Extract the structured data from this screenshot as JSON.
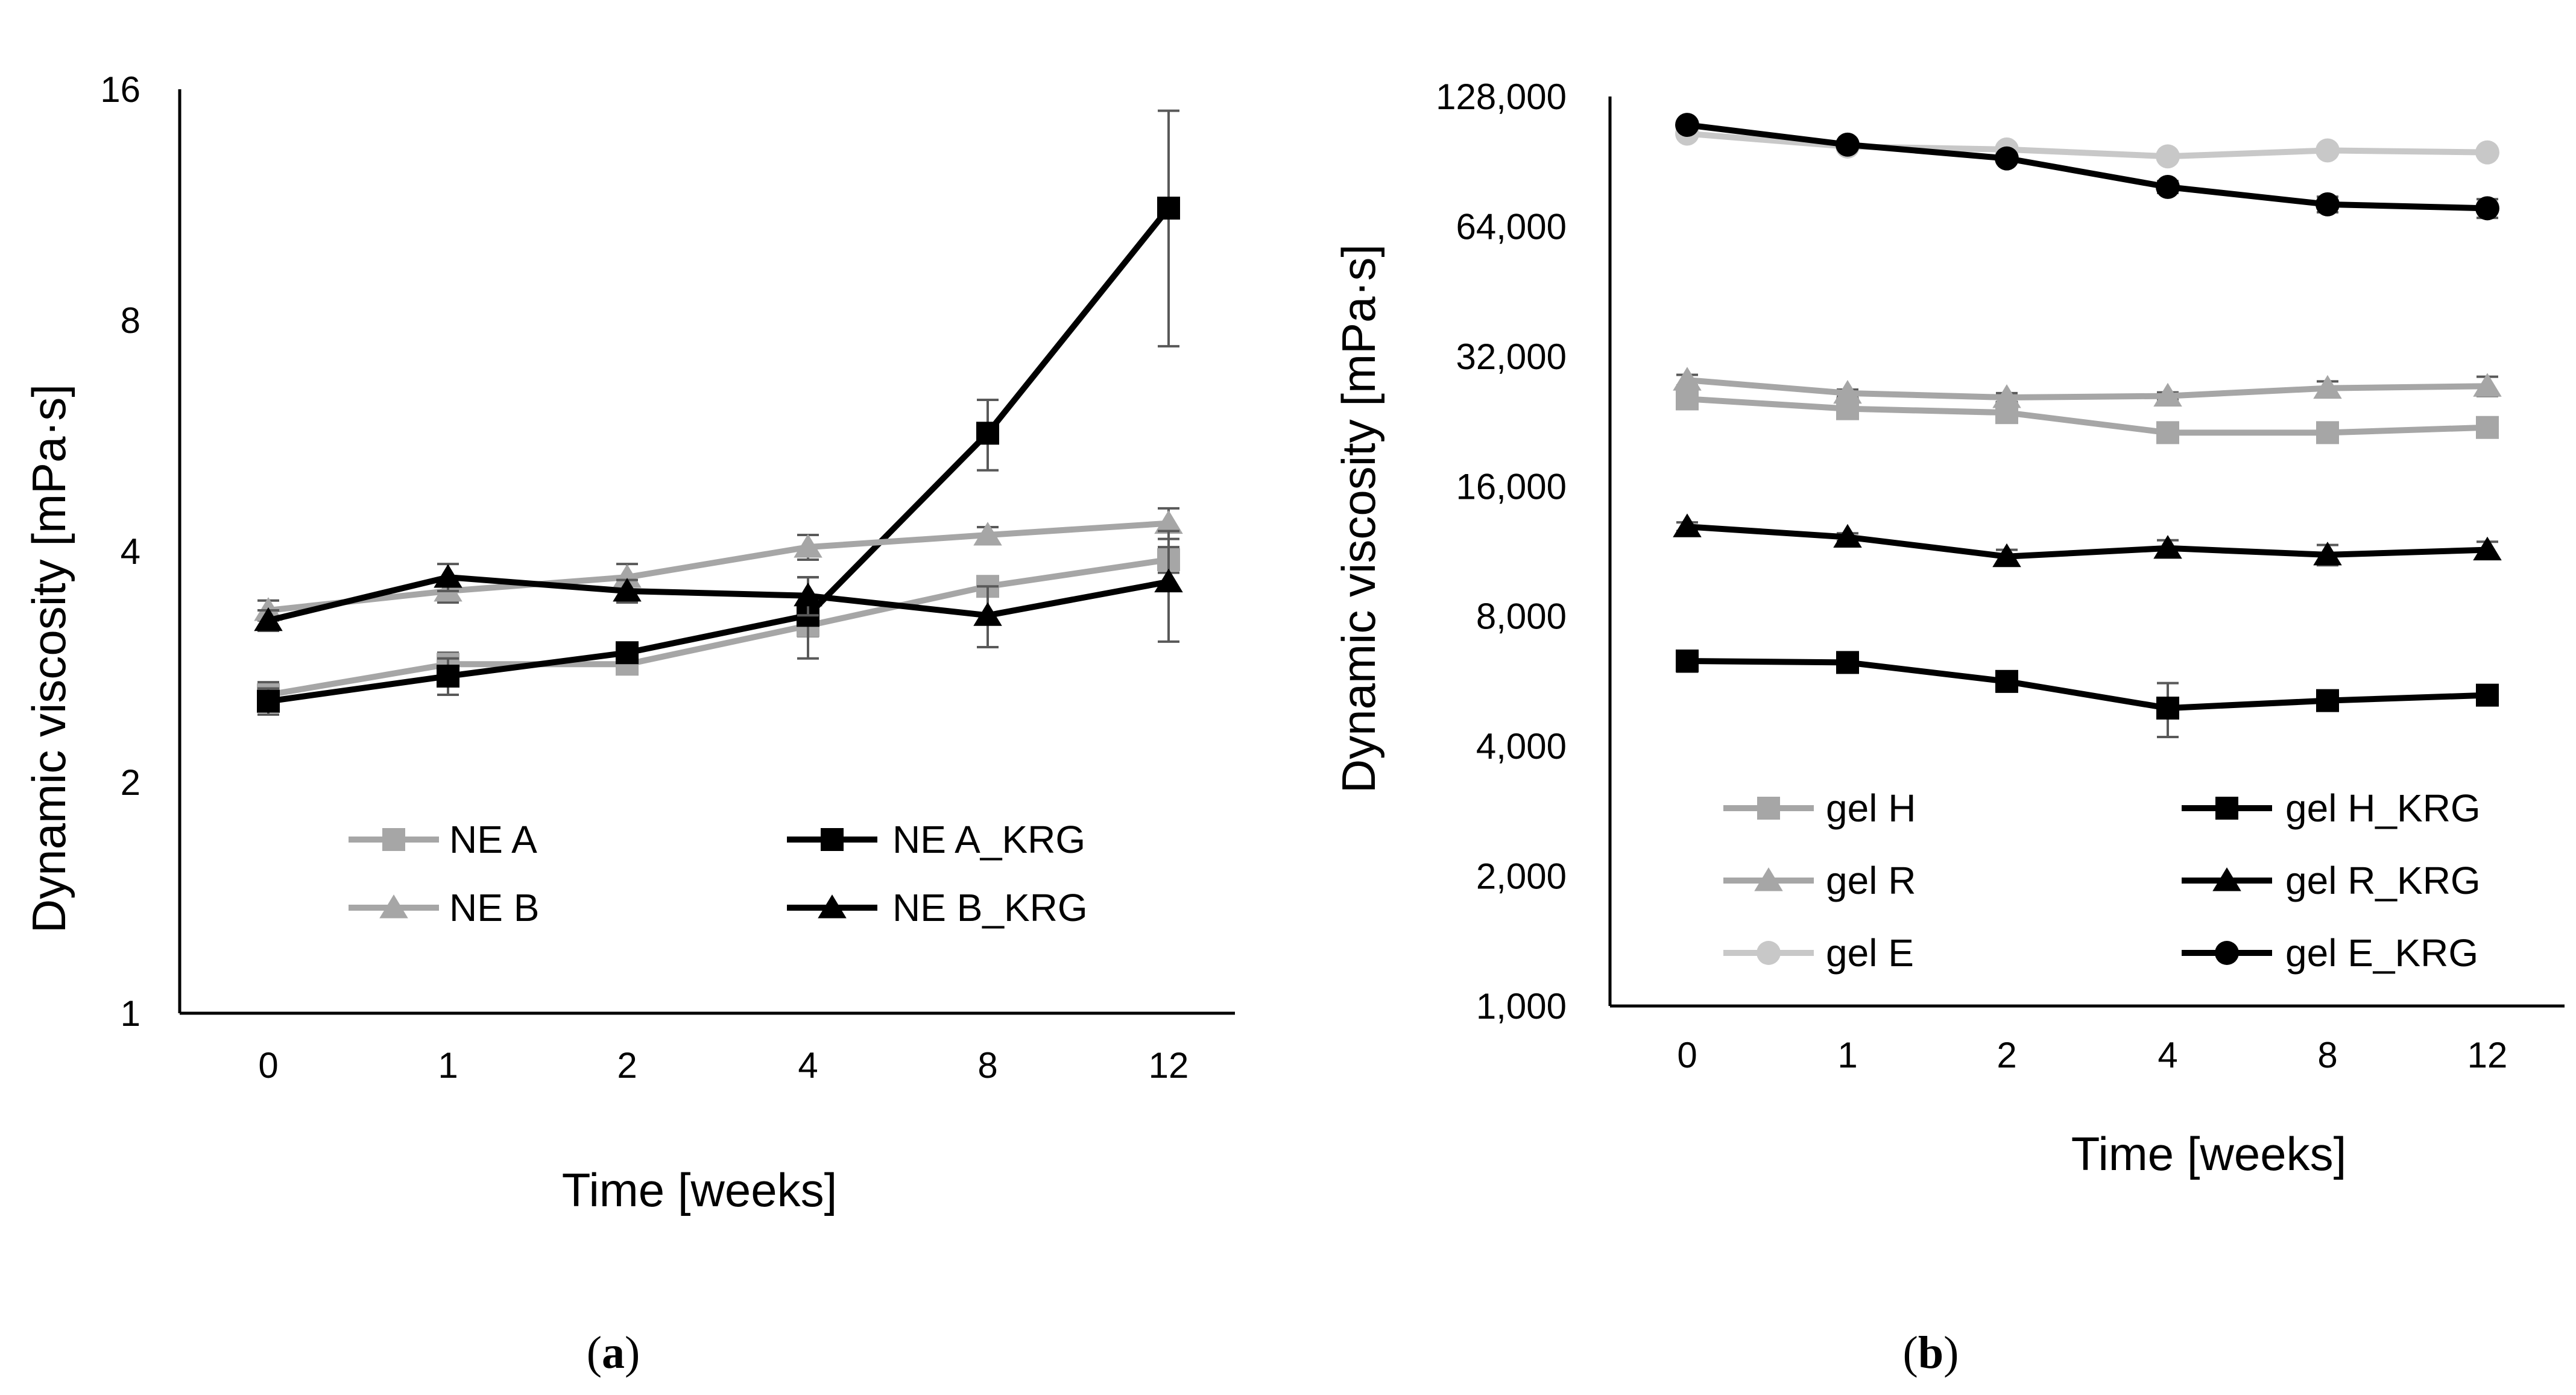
{
  "chart_data": [
    {
      "type": "line",
      "panel_label": "(a)",
      "panel_letter": "a",
      "xlabel": "Time [weeks]",
      "ylabel": "Dynamic viscosity [mPa·s]",
      "yscale": "log2",
      "ylim": [
        1,
        16
      ],
      "yticks": [
        "1",
        "2",
        "4",
        "8",
        "16"
      ],
      "ytick_values": [
        1,
        2,
        4,
        8,
        16
      ],
      "categories": [
        "0",
        "1",
        "2",
        "4",
        "8",
        "12"
      ],
      "legend_position": "bottom-center",
      "series": [
        {
          "name": "NE A",
          "color": "#a6a6a6",
          "marker": "square",
          "values": [
            2.6,
            2.85,
            2.85,
            3.2,
            3.6,
            3.9
          ],
          "errors": [
            0.1,
            0.1,
            0.08,
            0.1,
            0.1,
            0.15
          ]
        },
        {
          "name": "NE A_KRG",
          "color": "#000000",
          "marker": "square",
          "values": [
            2.55,
            2.75,
            2.95,
            3.3,
            5.7,
            11.2
          ],
          "errors": [
            0.1,
            0.15,
            0.08,
            0.4,
            0.6,
            3.8
          ]
        },
        {
          "name": "NE B",
          "color": "#a6a6a6",
          "marker": "triangle",
          "values": [
            3.35,
            3.55,
            3.7,
            4.05,
            4.2,
            4.35
          ],
          "errors": [
            0.1,
            0.12,
            0.15,
            0.15,
            0.1,
            0.2
          ]
        },
        {
          "name": "NE B_KRG",
          "color": "#000000",
          "marker": "triangle",
          "values": [
            3.25,
            3.7,
            3.55,
            3.5,
            3.3,
            3.65
          ],
          "errors": [
            0.1,
            0.15,
            0.12,
            0.2,
            0.3,
            0.6
          ]
        }
      ]
    },
    {
      "type": "line",
      "panel_label": "(b)",
      "panel_letter": "b",
      "xlabel": "Time [weeks]",
      "ylabel": "Dynamic viscosity [mPa·s]",
      "yscale": "log2",
      "ylim": [
        1000,
        128000
      ],
      "yticks": [
        "1,000",
        "2,000",
        "4,000",
        "8,000",
        "16,000",
        "32,000",
        "64,000",
        "128,000"
      ],
      "ytick_values": [
        1000,
        2000,
        4000,
        8000,
        16000,
        32000,
        64000,
        128000
      ],
      "categories": [
        "0",
        "1",
        "2",
        "4",
        "8",
        "12"
      ],
      "legend_position": "bottom-center",
      "series": [
        {
          "name": "gel H",
          "color": "#a6a6a6",
          "marker": "square",
          "values": [
            25500,
            24200,
            23700,
            21300,
            21300,
            21900
          ],
          "errors": [
            1000,
            600,
            1000,
            400,
            400,
            500
          ]
        },
        {
          "name": "gel H_KRG",
          "color": "#000000",
          "marker": "square",
          "values": [
            6300,
            6250,
            5650,
            4900,
            5100,
            5250
          ],
          "errors": [
            350,
            250,
            300,
            700,
            150,
            120
          ]
        },
        {
          "name": "gel R",
          "color": "#a6a6a6",
          "marker": "triangle",
          "values": [
            28200,
            26300,
            25700,
            25900,
            27000,
            27300
          ],
          "errors": [
            800,
            500,
            600,
            500,
            1000,
            1400
          ]
        },
        {
          "name": "gel R_KRG",
          "color": "#000000",
          "marker": "triangle",
          "values": [
            12900,
            12200,
            11000,
            11500,
            11100,
            11400
          ],
          "errors": [
            300,
            250,
            400,
            500,
            600,
            500
          ]
        },
        {
          "name": "gel E",
          "color": "#c8c8c8",
          "marker": "circle",
          "values": [
            105000,
            98000,
            96500,
            93000,
            96000,
            95000
          ],
          "errors": [
            2000,
            2000,
            2000,
            1500,
            1500,
            1500
          ]
        },
        {
          "name": "gel E_KRG",
          "color": "#000000",
          "marker": "circle",
          "values": [
            110000,
            99000,
            92000,
            79000,
            72000,
            70500
          ],
          "errors": [
            2000,
            2000,
            2000,
            2500,
            3000,
            3500
          ]
        }
      ]
    }
  ]
}
